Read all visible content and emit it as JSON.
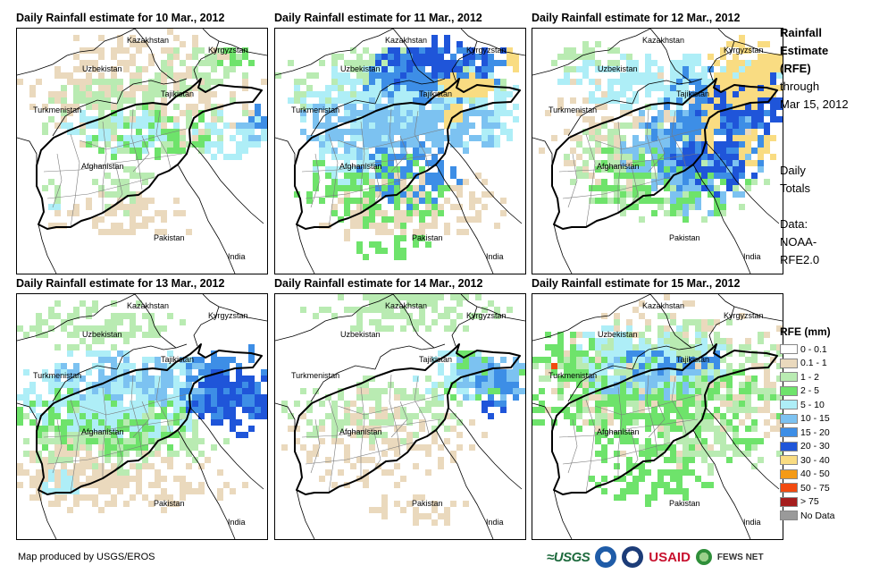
{
  "panels": [
    {
      "title": "Daily Rainfall estimate for 10 Mar., 2012",
      "day": 10
    },
    {
      "title": "Daily Rainfall estimate for 11 Mar., 2012",
      "day": 11
    },
    {
      "title": "Daily Rainfall estimate for 12 Mar., 2012",
      "day": 12
    },
    {
      "title": "Daily Rainfall estimate for 13 Mar., 2012",
      "day": 13
    },
    {
      "title": "Daily Rainfall estimate for 14 Mar., 2012",
      "day": 14
    },
    {
      "title": "Daily Rainfall estimate for 15 Mar., 2012",
      "day": 15
    }
  ],
  "place_labels": {
    "kazakhstan": "Kazakhstan",
    "kyrgyzstan": "Kyrgyzstan",
    "uzbekistan": "Uzbekistan",
    "tajikistan": "Tajikistan",
    "turkmenistan": "Turkmenistan",
    "afghanistan": "Afghanistan",
    "pakistan": "Pakistan",
    "india": "India"
  },
  "sidebar": {
    "title_lines": [
      "Rainfall",
      "Estimate",
      "(RFE)"
    ],
    "subtitle_lines": [
      "through",
      "Mar 15, 2012"
    ],
    "totals_lines": [
      "Daily",
      "Totals"
    ],
    "data_lines": [
      "Data:",
      "NOAA-",
      "RFE2.0"
    ]
  },
  "legend": {
    "title": "RFE (mm)",
    "items": [
      {
        "label": "0 - 0.1",
        "color": "#ffffff"
      },
      {
        "label": "0.1 - 1",
        "color": "#ead9bd"
      },
      {
        "label": "1 - 2",
        "color": "#b9ebb2"
      },
      {
        "label": "2 - 5",
        "color": "#6ee36b"
      },
      {
        "label": "5 - 10",
        "color": "#aeeef7"
      },
      {
        "label": "10 - 15",
        "color": "#7cc2f1"
      },
      {
        "label": "15 - 20",
        "color": "#3d8ee6"
      },
      {
        "label": "20 - 30",
        "color": "#1f55d9"
      },
      {
        "label": "30 - 40",
        "color": "#f9dc82"
      },
      {
        "label": "40 - 50",
        "color": "#f49a16"
      },
      {
        "label": "50 - 75",
        "color": "#f24a10"
      },
      {
        "label": "> 75",
        "color": "#a51d1d"
      },
      {
        "label": "No Data",
        "color": "#9a9a9a"
      }
    ]
  },
  "footer": {
    "credit": "Map produced by USGS/EROS",
    "logos": {
      "usgs": "USGS",
      "usaid": "USAID",
      "fews": "FEWS NET"
    }
  },
  "colors": {
    "country_border": "#000000",
    "province_border": "#7a7a7a"
  }
}
